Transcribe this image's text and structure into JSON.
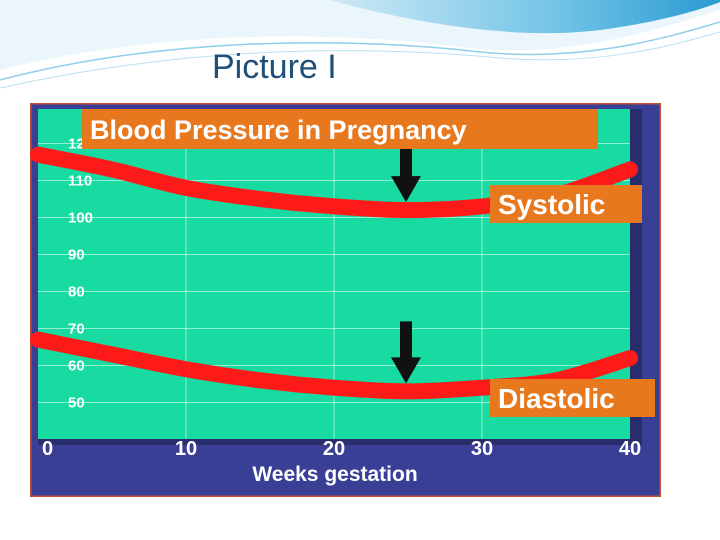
{
  "slide": {
    "title": "Picture I"
  },
  "colors": {
    "plot_background": "#17dba0",
    "frame": "#3a3f96",
    "outer_border": "#c0503a",
    "curve": "#ff1a1a",
    "label_box": "#e8781e",
    "label_text": "#ffffff",
    "arrow": "#111111",
    "title_text": "#1f4e79"
  },
  "chart_data": {
    "type": "line",
    "title": "Blood Pressure in Pregnancy",
    "xlabel": "Weeks gestation",
    "ylabel": "",
    "xlim": [
      0,
      40
    ],
    "ylim": [
      45,
      125
    ],
    "x_ticks": [
      "0",
      "10",
      "20",
      "30",
      "40"
    ],
    "y_ticks": [
      "12",
      "110",
      "100",
      "90",
      "80",
      "70",
      "60",
      "50"
    ],
    "grid": true,
    "series": [
      {
        "name": "Systolic",
        "x": [
          0,
          5,
          10,
          15,
          20,
          25,
          30,
          35,
          40
        ],
        "y": [
          117,
          113,
          108,
          105,
          103,
          102,
          103,
          106,
          113
        ]
      },
      {
        "name": "Diastolic",
        "x": [
          0,
          5,
          10,
          15,
          20,
          25,
          30,
          35,
          40
        ],
        "y": [
          67,
          63,
          59,
          56,
          54,
          53,
          54,
          56,
          62
        ]
      }
    ],
    "annotations": [
      {
        "type": "arrow",
        "x": 25,
        "series": "Systolic"
      },
      {
        "type": "arrow",
        "x": 25,
        "series": "Diastolic"
      }
    ]
  }
}
